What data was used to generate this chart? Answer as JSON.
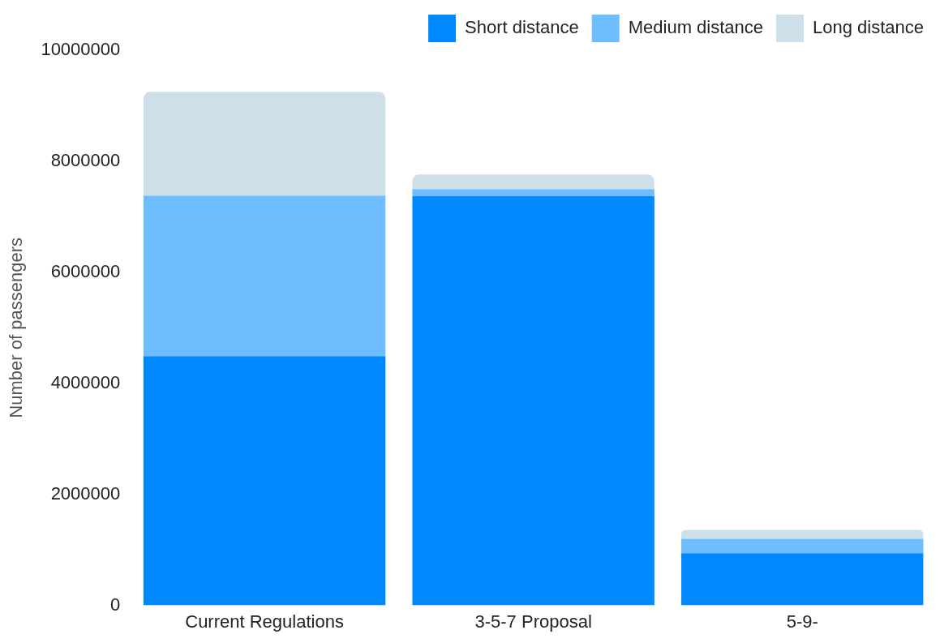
{
  "chart_data": {
    "type": "bar",
    "stacked": true,
    "ylabel": "Number of passengers",
    "categories": [
      "Current Regulations",
      "3-5-7 Proposal",
      "5-9-"
    ],
    "series": [
      {
        "name": "Short distance",
        "color": "#0088ff",
        "values": [
          4490000,
          7370000,
          940000
        ]
      },
      {
        "name": "Medium distance",
        "color": "#6ebdff",
        "values": [
          2890000,
          130000,
          260000
        ]
      },
      {
        "name": "Long distance",
        "color": "#cde0ea",
        "values": [
          1870000,
          260000,
          160000
        ]
      }
    ],
    "ylim": [
      0,
      10000000
    ],
    "yticks": [
      0,
      2000000,
      4000000,
      6000000,
      8000000,
      10000000
    ],
    "grid": false,
    "legend": "top right"
  }
}
